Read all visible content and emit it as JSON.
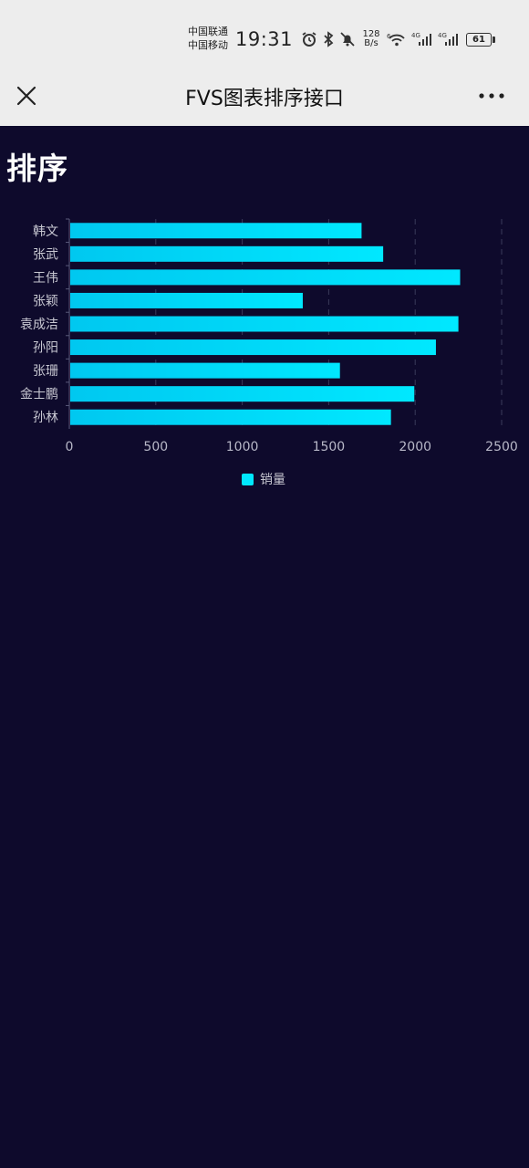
{
  "status_bar": {
    "carrier_1": "中国联通",
    "carrier_2": "中国移动",
    "time": "19:31",
    "net_speed_value": "128",
    "net_speed_unit": "B/s",
    "signal_1_label": "4G",
    "signal_2_label": "4G",
    "wifi_label": "6",
    "battery": "61"
  },
  "title_bar": {
    "title": "FVS图表排序接口"
  },
  "content": {
    "heading": "排序"
  },
  "colors": {
    "bar_start": "#00c8f0",
    "bar_end": "#00e8ff",
    "background": "#0e0a2c"
  },
  "chart_data": {
    "type": "bar",
    "orientation": "horizontal",
    "categories": [
      "韩文",
      "张武",
      "王伟",
      "张颖",
      "袁成洁",
      "孙阳",
      "张珊",
      "金士鹏",
      "孙林"
    ],
    "series": [
      {
        "name": "销量",
        "values": [
          1690,
          1815,
          2260,
          1350,
          2250,
          2120,
          1565,
          1995,
          1860
        ]
      }
    ],
    "xlim": [
      0,
      2500
    ],
    "x_ticks": [
      "0",
      "500",
      "1000",
      "1500",
      "2000",
      "2500"
    ],
    "grid": true,
    "legend_position": "bottom"
  }
}
